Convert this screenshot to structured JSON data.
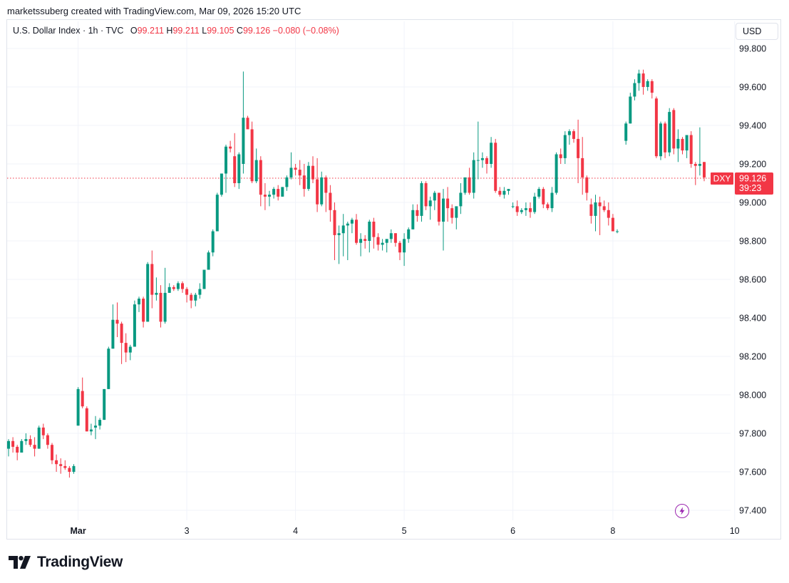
{
  "header": {
    "credit": "marketssuberg created with TradingView.com, Mar 09, 2026 15:20 UTC"
  },
  "legend": {
    "symbol": "U.S. Dollar Index · 1h · TVC",
    "open_label": "O",
    "open": "99.211",
    "high_label": "H",
    "high": "99.211",
    "low_label": "L",
    "low": "99.105",
    "close_label": "C",
    "close": "99.126",
    "change": "−0.080 (−0.08%)"
  },
  "currency_button": "USD",
  "price_tag": {
    "ticker": "DXY",
    "price": "99.126",
    "countdown": "39:23"
  },
  "footer": {
    "brand": "TradingView"
  },
  "icons": {
    "logo": "tradingview-logo-icon",
    "bolt": "lightning-bolt-icon"
  },
  "colors": {
    "up": "#089981",
    "down": "#f23645",
    "grid": "#f0f3fa",
    "text": "#131722",
    "bolt": "#9c27b0"
  },
  "chart_data": {
    "type": "candlestick",
    "title": "U.S. Dollar Index · 1h · TVC",
    "ylim": [
      97.32,
      99.9
    ],
    "y_ticks": [
      "99.800",
      "99.600",
      "99.400",
      "99.200",
      "99.000",
      "98.800",
      "98.600",
      "98.400",
      "98.200",
      "98.000",
      "97.800",
      "97.600",
      "97.400"
    ],
    "x_ticks": [
      {
        "label": "Mar",
        "index": 16
      },
      {
        "label": "3",
        "index": 41
      },
      {
        "label": "4",
        "index": 66
      },
      {
        "label": "5",
        "index": 91
      },
      {
        "label": "6",
        "index": 116
      },
      {
        "label": "8",
        "index": 139
      },
      {
        "label": "10",
        "index": 167
      }
    ],
    "grid": true,
    "last_price": 99.126,
    "candles": [
      [
        97.72,
        97.77,
        97.68,
        97.76
      ],
      [
        97.76,
        97.78,
        97.7,
        97.73
      ],
      [
        97.73,
        97.74,
        97.66,
        97.7
      ],
      [
        97.7,
        97.77,
        97.7,
        97.76
      ],
      [
        97.76,
        97.8,
        97.74,
        97.77
      ],
      [
        97.77,
        97.79,
        97.73,
        97.74
      ],
      [
        97.74,
        97.78,
        97.68,
        97.72
      ],
      [
        97.72,
        97.84,
        97.72,
        97.83
      ],
      [
        97.83,
        97.85,
        97.77,
        97.79
      ],
      [
        97.79,
        97.8,
        97.72,
        97.74
      ],
      [
        97.74,
        97.75,
        97.64,
        97.66
      ],
      [
        97.66,
        97.69,
        97.6,
        97.64
      ],
      [
        97.64,
        97.67,
        97.59,
        97.63
      ],
      [
        97.63,
        97.66,
        97.61,
        97.62
      ],
      [
        97.62,
        97.63,
        97.57,
        97.6
      ],
      [
        97.6,
        97.64,
        97.59,
        97.63
      ],
      [
        97.84,
        98.04,
        97.84,
        98.03
      ],
      [
        98.02,
        98.09,
        97.93,
        97.94
      ],
      [
        97.93,
        97.94,
        97.81,
        97.81
      ],
      [
        97.81,
        97.85,
        97.79,
        97.82
      ],
      [
        97.83,
        97.89,
        97.77,
        97.84
      ],
      [
        97.84,
        97.88,
        97.82,
        97.87
      ],
      [
        97.87,
        98.03,
        97.87,
        98.03
      ],
      [
        98.03,
        98.25,
        98.03,
        98.24
      ],
      [
        98.24,
        98.47,
        98.24,
        98.39
      ],
      [
        98.39,
        98.48,
        98.3,
        98.37
      ],
      [
        98.37,
        98.38,
        98.16,
        98.27
      ],
      [
        98.27,
        98.32,
        98.17,
        98.22
      ],
      [
        98.22,
        98.26,
        98.18,
        98.25
      ],
      [
        98.25,
        98.49,
        98.25,
        98.47
      ],
      [
        98.47,
        98.51,
        98.43,
        98.5
      ],
      [
        98.5,
        98.51,
        98.35,
        98.38
      ],
      [
        98.38,
        98.69,
        98.38,
        98.68
      ],
      [
        98.68,
        98.75,
        98.45,
        98.52
      ],
      [
        98.52,
        98.61,
        98.49,
        98.53
      ],
      [
        98.53,
        98.57,
        98.35,
        98.38
      ],
      [
        98.38,
        98.66,
        98.37,
        98.53
      ],
      [
        98.53,
        98.58,
        98.53,
        98.56
      ],
      [
        98.56,
        98.57,
        98.54,
        98.55
      ],
      [
        98.55,
        98.59,
        98.54,
        98.58
      ],
      [
        98.58,
        98.59,
        98.53,
        98.55
      ],
      [
        98.55,
        98.56,
        98.48,
        98.52
      ],
      [
        98.52,
        98.53,
        98.45,
        98.49
      ],
      [
        98.49,
        98.53,
        98.46,
        98.52
      ],
      [
        98.52,
        98.58,
        98.5,
        98.55
      ],
      [
        98.55,
        98.65,
        98.55,
        98.65
      ],
      [
        98.65,
        98.75,
        98.65,
        98.74
      ],
      [
        98.74,
        98.86,
        98.72,
        98.85
      ],
      [
        98.85,
        99.05,
        98.85,
        99.04
      ],
      [
        99.04,
        99.12,
        99.03,
        99.15
      ],
      [
        99.15,
        99.3,
        99.05,
        99.29
      ],
      [
        99.29,
        99.32,
        99.26,
        99.28
      ],
      [
        99.24,
        99.36,
        99.08,
        99.1
      ],
      [
        99.1,
        99.26,
        99.07,
        99.25
      ],
      [
        99.2,
        99.68,
        99.15,
        99.44
      ],
      [
        99.44,
        99.45,
        99.39,
        99.38
      ],
      [
        99.38,
        99.42,
        99.1,
        99.11
      ],
      [
        99.11,
        99.28,
        99.1,
        99.22
      ],
      [
        99.22,
        99.24,
        98.98,
        99.04
      ],
      [
        99.04,
        99.1,
        98.96,
        99.03
      ],
      [
        99.03,
        99.06,
        98.98,
        99.04
      ],
      [
        99.04,
        99.08,
        99.02,
        99.07
      ],
      [
        99.07,
        99.09,
        99.01,
        99.03
      ],
      [
        99.03,
        99.08,
        99.03,
        99.08
      ],
      [
        99.08,
        99.14,
        99.06,
        99.13
      ],
      [
        99.13,
        99.26,
        99.12,
        99.18
      ],
      [
        99.18,
        99.2,
        99.14,
        99.17
      ],
      [
        99.17,
        99.22,
        99.09,
        99.14
      ],
      [
        99.14,
        99.2,
        99.03,
        99.07
      ],
      [
        99.07,
        99.21,
        99.06,
        99.19
      ],
      [
        99.19,
        99.24,
        99.1,
        99.12
      ],
      [
        99.12,
        99.23,
        98.95,
        98.99
      ],
      [
        98.99,
        99.16,
        98.98,
        99.13
      ],
      [
        99.13,
        99.14,
        98.95,
        99.05
      ],
      [
        99.05,
        99.09,
        98.9,
        98.96
      ],
      [
        98.96,
        99.0,
        98.7,
        98.83
      ],
      [
        98.83,
        98.88,
        98.68,
        98.84
      ],
      [
        98.84,
        98.94,
        98.72,
        98.88
      ],
      [
        98.88,
        98.9,
        98.7,
        98.89
      ],
      [
        98.89,
        98.92,
        98.84,
        98.91
      ],
      [
        98.91,
        98.94,
        98.78,
        98.79
      ],
      [
        98.79,
        98.84,
        98.72,
        98.81
      ],
      [
        98.81,
        98.83,
        98.76,
        98.8
      ],
      [
        98.8,
        98.91,
        98.74,
        98.9
      ],
      [
        98.9,
        98.92,
        98.76,
        98.82
      ],
      [
        98.82,
        98.84,
        98.75,
        98.78
      ],
      [
        98.78,
        98.81,
        98.75,
        98.79
      ],
      [
        98.79,
        98.8,
        98.74,
        98.81
      ],
      [
        98.81,
        98.86,
        98.79,
        98.84
      ],
      [
        98.84,
        98.84,
        98.77,
        98.79
      ],
      [
        98.79,
        98.8,
        98.7,
        98.74
      ],
      [
        98.74,
        98.84,
        98.67,
        98.81
      ],
      [
        98.81,
        98.87,
        98.79,
        98.86
      ],
      [
        98.86,
        98.99,
        98.86,
        98.96
      ],
      [
        98.96,
        98.99,
        98.9,
        98.93
      ],
      [
        98.93,
        99.11,
        98.9,
        99.1
      ],
      [
        99.1,
        99.11,
        98.96,
        98.98
      ],
      [
        98.98,
        99.03,
        98.91,
        99.01
      ],
      [
        99.01,
        99.06,
        98.96,
        99.05
      ],
      [
        99.05,
        99.05,
        98.88,
        98.9
      ],
      [
        98.9,
        99.07,
        98.75,
        99.02
      ],
      [
        99.02,
        99.08,
        98.9,
        98.97
      ],
      [
        98.97,
        98.99,
        98.89,
        98.92
      ],
      [
        98.92,
        98.94,
        98.86,
        98.98
      ],
      [
        98.98,
        99.1,
        98.94,
        99.05
      ],
      [
        99.05,
        99.12,
        99.04,
        99.13
      ],
      [
        99.13,
        99.18,
        99.04,
        99.05
      ],
      [
        99.05,
        99.26,
        99.02,
        99.22
      ],
      [
        99.22,
        99.42,
        99.12,
        99.22
      ],
      [
        99.22,
        99.26,
        99.18,
        99.23
      ],
      [
        99.23,
        99.24,
        99.15,
        99.2
      ],
      [
        99.2,
        99.34,
        99.18,
        99.31
      ],
      [
        99.31,
        99.33,
        99.05,
        99.06
      ],
      [
        99.06,
        99.08,
        99.03,
        99.04
      ],
      [
        99.04,
        99.08,
        99.02,
        99.06
      ],
      [
        99.06,
        99.07,
        99.04,
        99.07
      ],
      [
        98.98,
        99.0,
        98.97,
        98.98
      ],
      [
        98.98,
        99.01,
        98.93,
        98.95
      ],
      [
        98.95,
        98.97,
        98.94,
        98.96
      ],
      [
        98.96,
        99.0,
        98.93,
        98.97
      ],
      [
        98.97,
        99.0,
        98.92,
        98.95
      ],
      [
        98.95,
        99.05,
        98.94,
        99.03
      ],
      [
        99.03,
        99.08,
        99.02,
        99.07
      ],
      [
        99.07,
        99.08,
        98.97,
        98.99
      ],
      [
        98.99,
        99.0,
        98.96,
        98.97
      ],
      [
        98.97,
        99.08,
        98.95,
        99.05
      ],
      [
        99.05,
        99.26,
        99.04,
        99.25
      ],
      [
        99.25,
        99.28,
        99.2,
        99.23
      ],
      [
        99.23,
        99.37,
        99.2,
        99.35
      ],
      [
        99.35,
        99.38,
        99.3,
        99.37
      ],
      [
        99.37,
        99.38,
        99.31,
        99.33
      ],
      [
        99.33,
        99.43,
        99.1,
        99.23
      ],
      [
        99.23,
        99.34,
        99.04,
        99.13
      ],
      [
        99.13,
        99.14,
        99.01,
        99.05
      ],
      [
        98.99,
        99.02,
        98.89,
        98.93
      ],
      [
        98.93,
        99.04,
        98.85,
        99.0
      ],
      [
        99.0,
        99.03,
        98.83,
        98.98
      ],
      [
        98.98,
        99.01,
        98.95,
        98.96
      ],
      [
        98.96,
        99.0,
        98.88,
        98.92
      ],
      [
        98.92,
        98.94,
        98.85,
        98.85
      ],
      [
        98.85,
        98.86,
        98.84,
        98.85
      ],
      null,
      [
        99.32,
        99.42,
        99.3,
        99.41
      ],
      [
        99.41,
        99.57,
        99.41,
        99.55
      ],
      [
        99.55,
        99.64,
        99.53,
        99.62
      ],
      [
        99.62,
        99.69,
        99.58,
        99.67
      ],
      [
        99.67,
        99.69,
        99.56,
        99.6
      ],
      [
        99.6,
        99.64,
        99.58,
        99.63
      ],
      [
        99.63,
        99.64,
        99.54,
        99.57
      ],
      [
        99.54,
        99.55,
        99.23,
        99.24
      ],
      [
        99.24,
        99.42,
        99.22,
        99.41
      ],
      [
        99.41,
        99.42,
        99.23,
        99.26
      ],
      [
        99.26,
        99.49,
        99.24,
        99.47
      ],
      [
        99.48,
        99.49,
        99.25,
        99.28
      ],
      [
        99.28,
        99.38,
        99.21,
        99.33
      ],
      [
        99.33,
        99.34,
        99.25,
        99.27
      ],
      [
        99.27,
        99.3,
        99.23,
        99.35
      ],
      [
        99.35,
        99.37,
        99.18,
        99.2
      ],
      [
        99.2,
        99.21,
        99.09,
        99.19
      ],
      [
        99.19,
        99.39,
        99.14,
        99.2
      ],
      [
        99.21,
        99.21,
        99.11,
        99.13
      ]
    ]
  }
}
